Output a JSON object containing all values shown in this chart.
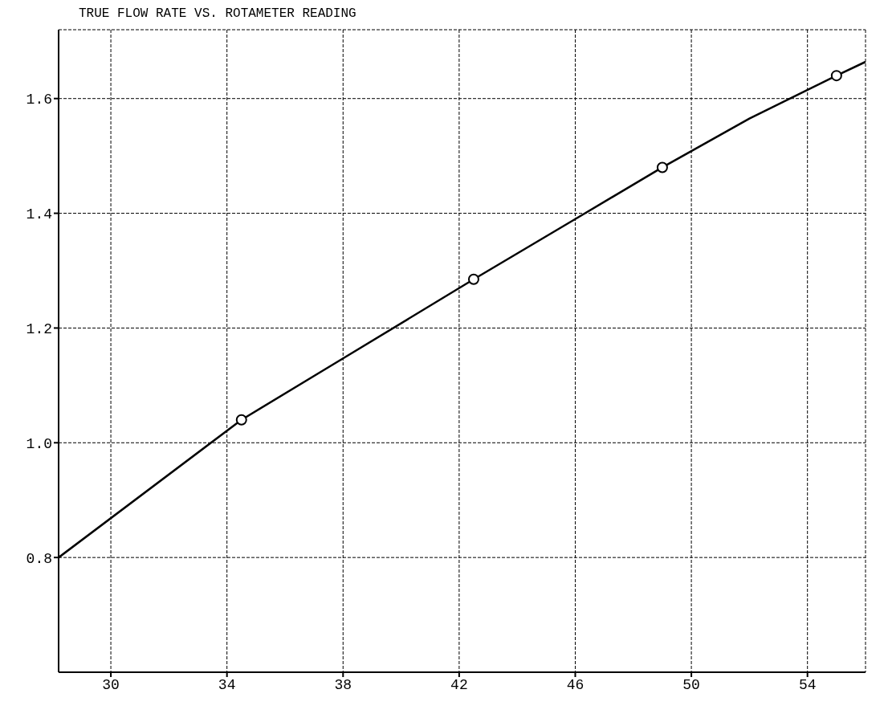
{
  "chart_data": {
    "type": "scatter",
    "title": "TRUE FLOW RATE VS. ROTAMETER READING",
    "xlim": [
      28.2,
      56
    ],
    "xticks": [
      30,
      34,
      38,
      42,
      46,
      50,
      54
    ],
    "ylim": [
      0.6,
      1.72
    ],
    "yticks": [
      {
        "value": 0.8,
        "label": "0.8"
      },
      {
        "value": 1,
        "label": "1.0"
      },
      {
        "value": 1.2,
        "label": "1.2"
      },
      {
        "value": 1.4,
        "label": "1.4"
      },
      {
        "value": 1.6,
        "label": "1.6"
      }
    ],
    "grid": true,
    "series": [
      {
        "type": "line",
        "color": "#000000",
        "marker": "none",
        "x": [
          28.2,
          34.5,
          38,
          42.5,
          46,
          49,
          52,
          55,
          56
        ],
        "values": [
          0.8,
          1.04,
          1.147,
          1.285,
          1.39,
          1.48,
          1.565,
          1.64,
          1.664
        ]
      },
      {
        "color": "#000000",
        "marker": "circle",
        "x": [
          34.5,
          42.5,
          49,
          55
        ],
        "values": [
          1.04,
          1.285,
          1.48,
          1.64
        ]
      }
    ]
  }
}
